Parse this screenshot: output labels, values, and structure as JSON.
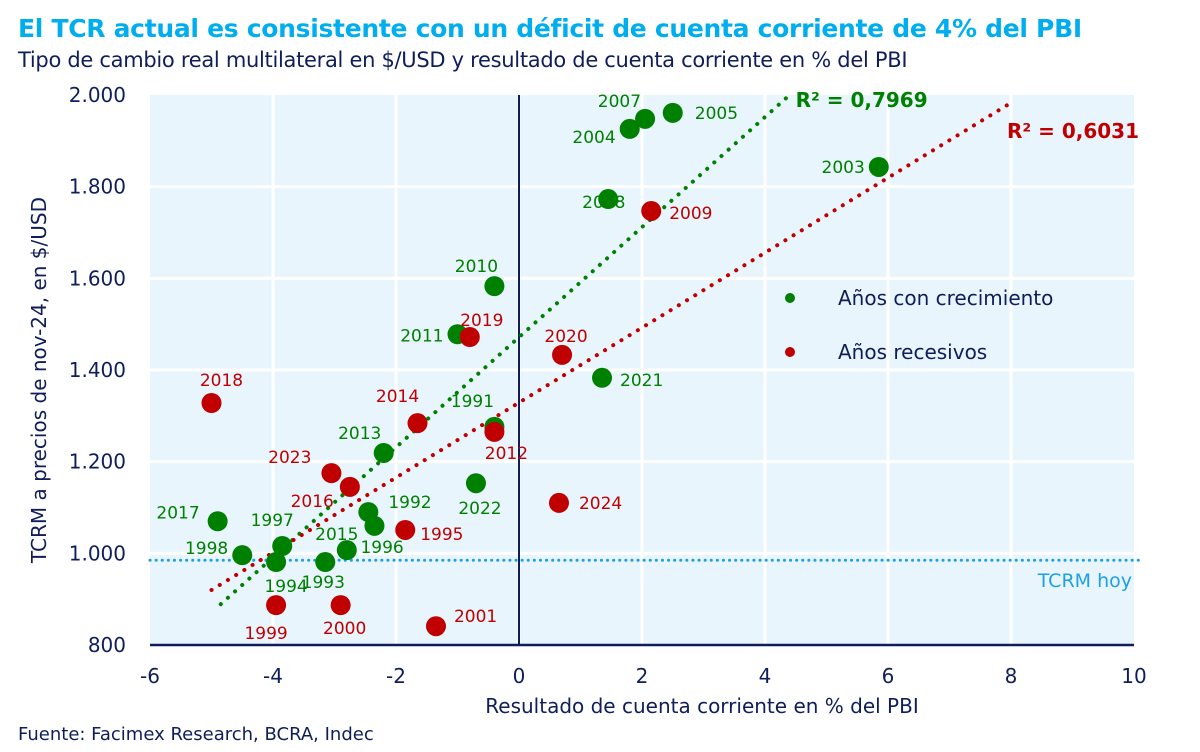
{
  "header": {
    "title": "El TCR actual es consistente con un déficit de cuenta corriente de 4% del PBI",
    "subtitle": "Tipo de cambio real multilateral en $/USD y resultado de cuenta corriente en % del PBI"
  },
  "footer": {
    "source": "Fuente: Facimex Research, BCRA, Indec"
  },
  "colors": {
    "title": "#00aeef",
    "text": "#0f1e5a",
    "plot_bg": "#e8f5fd",
    "grid": "#ffffff",
    "growth": "#008000",
    "recession": "#c00000",
    "hoy_line": "#1ea0e6"
  },
  "chart_data": {
    "type": "scatter",
    "title": "El TCR actual es consistente con un déficit de cuenta corriente de 4% del PBI",
    "subtitle": "Tipo de cambio real multilateral en $/USD y resultado de cuenta corriente en % del PBI",
    "xlabel": "Resultado de cuenta corriente en % del PBI",
    "ylabel": "TCRM a precios de nov-24, en $/USD",
    "xlim": [
      -6,
      10
    ],
    "ylim": [
      800,
      2000
    ],
    "x_ticks": [
      -6,
      -4,
      -2,
      0,
      2,
      4,
      6,
      8,
      10
    ],
    "x_tick_labels": [
      "-6",
      "-4",
      "-2",
      "0",
      "2",
      "4",
      "6",
      "8",
      "10"
    ],
    "y_ticks": [
      800,
      1000,
      1200,
      1400,
      1600,
      1800,
      2000
    ],
    "y_tick_labels": [
      "800",
      "1.000",
      "1.200",
      "1.400",
      "1.600",
      "1.800",
      "2.000"
    ],
    "grid": true,
    "legend_position": "right",
    "series": [
      {
        "name": "Años con crecimiento",
        "color": "#008000",
        "points": [
          {
            "label": "1991",
            "x": -0.4,
            "y": 1276
          },
          {
            "label": "1992",
            "x": -2.45,
            "y": 1090
          },
          {
            "label": "1993",
            "x": -3.15,
            "y": 981
          },
          {
            "label": "1994",
            "x": -3.95,
            "y": 981
          },
          {
            "label": "1996",
            "x": -2.35,
            "y": 1060
          },
          {
            "label": "1997",
            "x": -3.85,
            "y": 1016
          },
          {
            "label": "1998",
            "x": -4.5,
            "y": 996
          },
          {
            "label": "2003",
            "x": 5.85,
            "y": 1843
          },
          {
            "label": "2004",
            "x": 1.8,
            "y": 1926
          },
          {
            "label": "2005",
            "x": 2.5,
            "y": 1961
          },
          {
            "label": "2007",
            "x": 2.05,
            "y": 1948
          },
          {
            "label": "2008",
            "x": 1.45,
            "y": 1773
          },
          {
            "label": "2010",
            "x": -0.4,
            "y": 1583
          },
          {
            "label": "2011",
            "x": -1.0,
            "y": 1478
          },
          {
            "label": "2013",
            "x": -2.2,
            "y": 1219
          },
          {
            "label": "2015",
            "x": -2.8,
            "y": 1007
          },
          {
            "label": "2017",
            "x": -4.9,
            "y": 1070
          },
          {
            "label": "2021",
            "x": 1.35,
            "y": 1383
          },
          {
            "label": "2022",
            "x": -0.7,
            "y": 1153
          }
        ],
        "trendline": {
          "x": [
            -4.85,
            4.4
          ],
          "y": [
            889,
            2000
          ],
          "r2_label": "R² = 0,7969"
        }
      },
      {
        "name": "Años recesivos",
        "color": "#c00000",
        "points": [
          {
            "label": "1995",
            "x": -1.85,
            "y": 1051
          },
          {
            "label": "1999",
            "x": -3.95,
            "y": 887
          },
          {
            "label": "2000",
            "x": -2.9,
            "y": 887
          },
          {
            "label": "2001",
            "x": -1.35,
            "y": 841
          },
          {
            "label": "2009",
            "x": 2.15,
            "y": 1747
          },
          {
            "label": "2012",
            "x": -0.4,
            "y": 1265
          },
          {
            "label": "2014",
            "x": -1.65,
            "y": 1284
          },
          {
            "label": "2016",
            "x": -2.75,
            "y": 1145
          },
          {
            "label": "2018",
            "x": -5.0,
            "y": 1328
          },
          {
            "label": "2019",
            "x": -0.8,
            "y": 1472
          },
          {
            "label": "2020",
            "x": 0.7,
            "y": 1433
          },
          {
            "label": "2023",
            "x": -3.05,
            "y": 1175
          },
          {
            "label": "2024",
            "x": 0.65,
            "y": 1110
          }
        ],
        "trendline": {
          "x": [
            -5.0,
            8.0
          ],
          "y": [
            920,
            1983
          ],
          "r2_label": "R² = 0,6031"
        }
      }
    ],
    "reference_lines": [
      {
        "axis": "y",
        "value": 985,
        "label": "TCRM hoy",
        "color": "#1ea0e6",
        "style": "dotted"
      }
    ],
    "legend": [
      "Años con crecimiento",
      "Años recesivos"
    ]
  }
}
